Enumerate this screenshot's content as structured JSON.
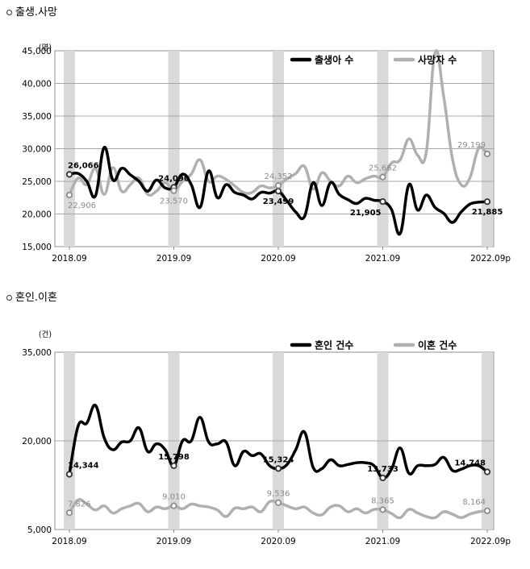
{
  "sections": [
    {
      "title": "출생.사망"
    },
    {
      "title": "혼인.이혼"
    }
  ],
  "chart_data": [
    {
      "type": "line",
      "unit": "(명)",
      "ylim": [
        15000,
        45000
      ],
      "yticks": [
        "15,000",
        "20,000",
        "25,000",
        "30,000",
        "35,000",
        "40,000",
        "45,000"
      ],
      "ytick_values": [
        15000,
        20000,
        25000,
        30000,
        35000,
        40000,
        45000
      ],
      "xtick_labels": [
        "2018.09",
        "2019.09",
        "2020.09",
        "2021.09",
        "2022.09p"
      ],
      "xtick_months": [
        0,
        12,
        24,
        36,
        48
      ],
      "shaded_months": [
        0,
        12,
        24,
        36,
        48
      ],
      "grid": true,
      "legend": "top-right",
      "colors": {
        "series1": "#000000",
        "series2": "#b0b0b0"
      },
      "series": [
        {
          "name": "출생아 수",
          "values": [
            26066,
            26200,
            25000,
            22800,
            30200,
            25200,
            27000,
            26000,
            25000,
            23500,
            25200,
            24000,
            24090,
            26100,
            24500,
            21000,
            26600,
            22500,
            24500,
            23300,
            22900,
            22300,
            23300,
            23200,
            23499,
            22000,
            20300,
            19600,
            24800,
            21300,
            24800,
            23000,
            22200,
            21600,
            22400,
            22100,
            21905,
            20700,
            17000,
            24500,
            20600,
            22900,
            21000,
            20100,
            18700,
            20300,
            21500,
            21800,
            21885
          ]
        },
        {
          "name": "사망자 수",
          "values": [
            22906,
            25500,
            24500,
            27000,
            23000,
            27100,
            23500,
            24500,
            25500,
            23000,
            23500,
            24800,
            23570,
            25000,
            26100,
            28300,
            25000,
            25800,
            25300,
            24300,
            23300,
            23300,
            24300,
            24000,
            24352,
            25400,
            26200,
            27300,
            23800,
            26300,
            25000,
            24300,
            25800,
            24800,
            25400,
            25800,
            25662,
            27800,
            28300,
            31500,
            29000,
            29500,
            44700,
            38000,
            28500,
            24500,
            25500,
            30000,
            29199
          ]
        }
      ],
      "data_labels": [
        {
          "series": 0,
          "index": 0,
          "text": "26,066",
          "pos": "above"
        },
        {
          "series": 0,
          "index": 12,
          "text": "24,090",
          "pos": "above"
        },
        {
          "series": 0,
          "index": 24,
          "text": "23,499",
          "pos": "below"
        },
        {
          "series": 0,
          "index": 36,
          "text": "21,905",
          "pos": "below-left"
        },
        {
          "series": 0,
          "index": 48,
          "text": "21,885",
          "pos": "below"
        },
        {
          "series": 1,
          "index": 0,
          "text": "22,906",
          "pos": "below"
        },
        {
          "series": 1,
          "index": 12,
          "text": "23,570",
          "pos": "below"
        },
        {
          "series": 1,
          "index": 24,
          "text": "24,352",
          "pos": "above"
        },
        {
          "series": 1,
          "index": 36,
          "text": "25,662",
          "pos": "above"
        },
        {
          "series": 1,
          "index": 48,
          "text": "29,199",
          "pos": "above-left"
        }
      ]
    },
    {
      "type": "line",
      "unit": "(건)",
      "ylim": [
        5000,
        35000
      ],
      "yticks": [
        "5,000",
        "20,000",
        "35,000"
      ],
      "ytick_values": [
        5000,
        20000,
        35000
      ],
      "xtick_labels": [
        "2018.09",
        "2019.09",
        "2020.09",
        "2021.09",
        "2022.09p"
      ],
      "xtick_months": [
        0,
        12,
        24,
        36,
        48
      ],
      "shaded_months": [
        0,
        12,
        24,
        36,
        48
      ],
      "grid": true,
      "legend": "top-right",
      "colors": {
        "series1": "#000000",
        "series2": "#b0b0b0"
      },
      "series": [
        {
          "name": "혼인 건수",
          "values": [
            14344,
            22500,
            23000,
            26000,
            20500,
            18500,
            19800,
            20000,
            22200,
            18200,
            19500,
            18500,
            15798,
            20000,
            20000,
            24000,
            19800,
            19500,
            19800,
            15800,
            18200,
            17500,
            17800,
            15800,
            15324,
            16000,
            18500,
            21500,
            15500,
            15300,
            16800,
            15800,
            16000,
            16300,
            16300,
            15800,
            13733,
            15200,
            18800,
            14500,
            15800,
            15800,
            16000,
            17200,
            15000,
            15200,
            15800,
            15800,
            14748
          ]
        },
        {
          "name": "이혼 건수",
          "values": [
            7826,
            10000,
            9300,
            8300,
            9000,
            7800,
            8500,
            9000,
            9400,
            8000,
            8800,
            8500,
            9010,
            8500,
            9300,
            9000,
            8800,
            8300,
            7200,
            8600,
            8500,
            8800,
            8000,
            9700,
            9536,
            9000,
            8500,
            8800,
            7800,
            7500,
            8800,
            9000,
            8000,
            8500,
            7800,
            8400,
            8365,
            7700,
            7000,
            8400,
            7800,
            7200,
            7000,
            8000,
            7600,
            7000,
            7600,
            8000,
            8164
          ]
        }
      ],
      "data_labels": [
        {
          "series": 0,
          "index": 0,
          "text": "14,344",
          "pos": "above"
        },
        {
          "series": 0,
          "index": 12,
          "text": "15,798",
          "pos": "above"
        },
        {
          "series": 0,
          "index": 24,
          "text": "15,324",
          "pos": "above"
        },
        {
          "series": 0,
          "index": 36,
          "text": "13,733",
          "pos": "above"
        },
        {
          "series": 0,
          "index": 48,
          "text": "14,748",
          "pos": "above-left"
        },
        {
          "series": 1,
          "index": 0,
          "text": "7,826",
          "pos": "above"
        },
        {
          "series": 1,
          "index": 12,
          "text": "9,010",
          "pos": "above"
        },
        {
          "series": 1,
          "index": 24,
          "text": "9,536",
          "pos": "above"
        },
        {
          "series": 1,
          "index": 36,
          "text": "8,365",
          "pos": "above"
        },
        {
          "series": 1,
          "index": 48,
          "text": "8,164",
          "pos": "above-left"
        }
      ]
    }
  ]
}
